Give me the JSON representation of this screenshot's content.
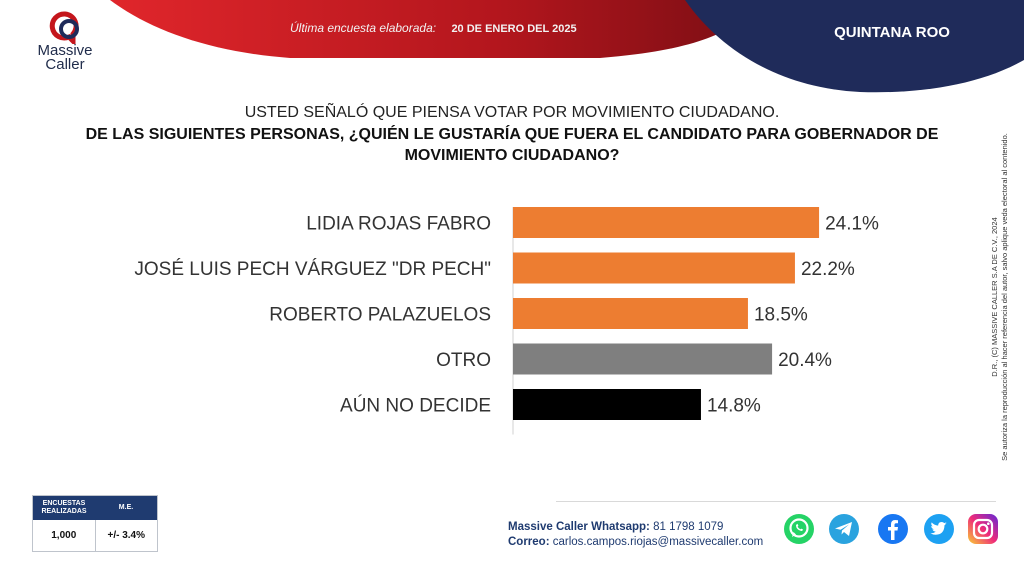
{
  "brand": {
    "name_line1": "Massive",
    "name_line2": "Caller",
    "tagline": ""
  },
  "header": {
    "survey_label": "Última encuesta elaborada:",
    "survey_date": "20 DE ENERO DEL 2025",
    "region": "QUINTANA ROO"
  },
  "question": {
    "intro": "USTED SEÑALÓ QUE PIENSA VOTAR POR MOVIMIENTO CIUDADANO.",
    "main": "DE LAS SIGUIENTES PERSONAS, ¿QUIÉN LE GUSTARÍA QUE FUERA EL CANDIDATO PARA GOBERNADOR DE MOVIMIENTO CIUDADANO?"
  },
  "chart_data": {
    "type": "bar",
    "orientation": "horizontal",
    "categories": [
      "LIDIA ROJAS FABRO",
      "JOSÉ LUIS PECH VÁRGUEZ \"DR PECH\"",
      "ROBERTO PALAZUELOS",
      "OTRO",
      "AÚN NO DECIDE"
    ],
    "values": [
      24.1,
      22.2,
      18.5,
      20.4,
      14.8
    ],
    "value_labels": [
      "24.1%",
      "22.2%",
      "18.5%",
      "20.4%",
      "14.8%"
    ],
    "colors": [
      "#ed7d31",
      "#ed7d31",
      "#ed7d31",
      "#7f7f7f",
      "#000000"
    ],
    "xlim": [
      0,
      25
    ],
    "grid": false,
    "legend": "none"
  },
  "legal": {
    "line1": "D.R., (C) MASSIVE CALLER S.A DE C.V., 2024",
    "line2": "Se autoriza la reproducción al hacer referencia del autor, salvo aplique veda electoral al contenido."
  },
  "stats": {
    "col1_header": "ENCUESTAS REALIZADAS",
    "col2_header": "M.E.",
    "col1_value": "1,000",
    "col2_value": "+/- 3.4%"
  },
  "contact": {
    "whatsapp_label": "Massive Caller Whatsapp:",
    "whatsapp_number": "81 1798 1079",
    "email_label": "Correo:",
    "email": "carlos.campos.riojas@massivecaller.com"
  },
  "social": {
    "icons": [
      "whatsapp-icon",
      "telegram-icon",
      "facebook-icon",
      "twitter-icon",
      "instagram-icon"
    ],
    "colors": {
      "whatsapp": "#25d366",
      "telegram": "#2aa3df",
      "facebook": "#1877f2",
      "twitter": "#1da1f2",
      "instagram": "#c13584"
    }
  },
  "theme": {
    "red": "#b3161d",
    "navy": "#1f2b5a",
    "accent_orange": "#ed7d31"
  }
}
